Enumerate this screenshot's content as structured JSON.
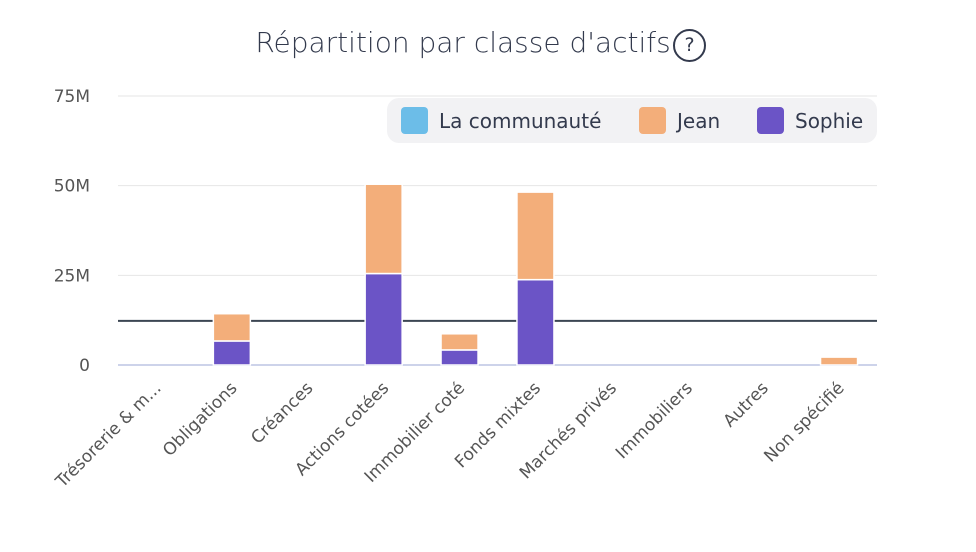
{
  "chart_data": {
    "type": "bar",
    "stacked": true,
    "title": "Répartition par classe d'actifs",
    "categories": [
      "Trésorerie & m...",
      "Obligations",
      "Créances",
      "Actions cotées",
      "Immobilier coté",
      "Fonds mixtes",
      "Marchés privés",
      "Immobiliers",
      "Autres",
      "Non spécifié"
    ],
    "series": [
      {
        "name": "La communauté",
        "color": "#6cbde8",
        "values": [
          0,
          0,
          0,
          0,
          0,
          0,
          0,
          0,
          0,
          0
        ]
      },
      {
        "name": "Sophie",
        "color": "#6b54c6",
        "values": [
          0,
          6.7,
          0,
          25.5,
          4.2,
          23.8,
          0,
          0,
          0,
          0
        ]
      },
      {
        "name": "Jean",
        "color": "#f3ae7a",
        "values": [
          0,
          7.6,
          0,
          24.9,
          4.5,
          24.4,
          0,
          0,
          0,
          2.2
        ]
      }
    ],
    "legend_order": [
      "La communauté",
      "Jean",
      "Sophie"
    ],
    "reference_line": 12.3,
    "yticks": [
      0,
      25,
      50,
      75
    ],
    "ytick_labels": [
      "0",
      "25M",
      "50M",
      "75M"
    ],
    "ylim": [
      0,
      75
    ],
    "unit": "M",
    "legend_position": "top-right",
    "grid": true
  },
  "help_icon": "?"
}
